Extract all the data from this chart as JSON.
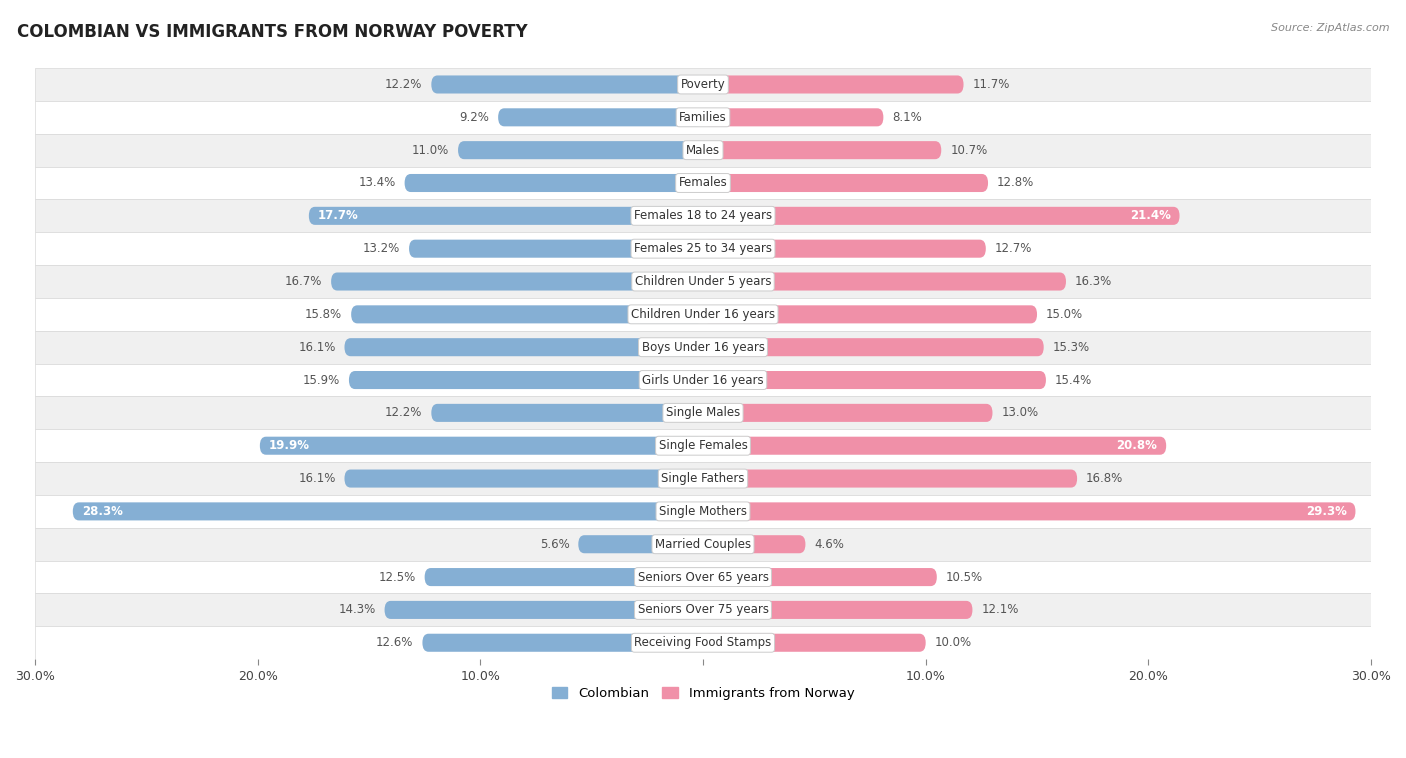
{
  "title": "COLOMBIAN VS IMMIGRANTS FROM NORWAY POVERTY",
  "source": "Source: ZipAtlas.com",
  "categories": [
    "Poverty",
    "Families",
    "Males",
    "Females",
    "Females 18 to 24 years",
    "Females 25 to 34 years",
    "Children Under 5 years",
    "Children Under 16 years",
    "Boys Under 16 years",
    "Girls Under 16 years",
    "Single Males",
    "Single Females",
    "Single Fathers",
    "Single Mothers",
    "Married Couples",
    "Seniors Over 65 years",
    "Seniors Over 75 years",
    "Receiving Food Stamps"
  ],
  "colombian": [
    12.2,
    9.2,
    11.0,
    13.4,
    17.7,
    13.2,
    16.7,
    15.8,
    16.1,
    15.9,
    12.2,
    19.9,
    16.1,
    28.3,
    5.6,
    12.5,
    14.3,
    12.6
  ],
  "norway": [
    11.7,
    8.1,
    10.7,
    12.8,
    21.4,
    12.7,
    16.3,
    15.0,
    15.3,
    15.4,
    13.0,
    20.8,
    16.8,
    29.3,
    4.6,
    10.5,
    12.1,
    10.0
  ],
  "colombian_color": "#85afd4",
  "norway_color": "#f090a8",
  "highlight_colombian": [
    4,
    11,
    13
  ],
  "highlight_norway": [
    4,
    11,
    13
  ],
  "background_row_light": "#f0f0f0",
  "background_row_white": "#ffffff",
  "row_border_color": "#d8d8d8",
  "axis_max": 30.0,
  "legend_colombian": "Colombian",
  "legend_norway": "Immigrants from Norway",
  "tick_positions": [
    -30,
    -20,
    -10,
    0,
    10,
    20,
    30
  ],
  "tick_labels": [
    "30.0%",
    "20.0%",
    "10.0%",
    "",
    "10.0%",
    "20.0%",
    "30.0%"
  ]
}
